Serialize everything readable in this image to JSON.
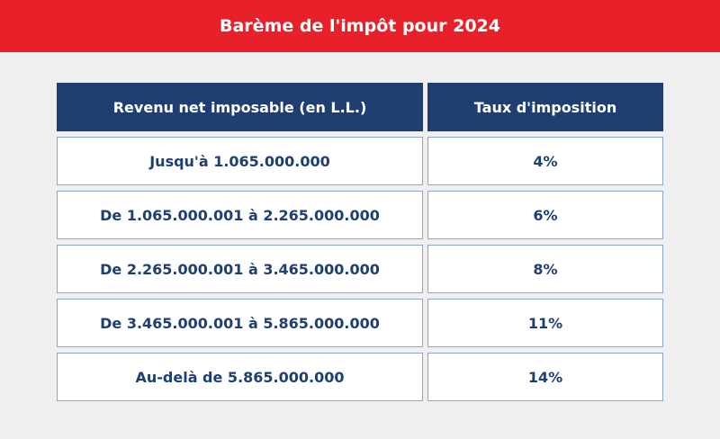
{
  "header": {
    "title": "Barème de l'impôt pour 2024"
  },
  "table": {
    "columns": [
      "Revenu net imposable (en L.L.)",
      "Taux d'imposition"
    ],
    "rows": [
      [
        "Jusqu'à 1.065.000.000",
        "4%"
      ],
      [
        "De 1.065.000.001 à 2.265.000.000",
        "6%"
      ],
      [
        "De 2.265.000.001 à 3.465.000.000",
        "8%"
      ],
      [
        "De 3.465.000.001 à 5.865.000.000",
        "11%"
      ],
      [
        "Au-delà de 5.865.000.000",
        "14%"
      ]
    ]
  }
}
